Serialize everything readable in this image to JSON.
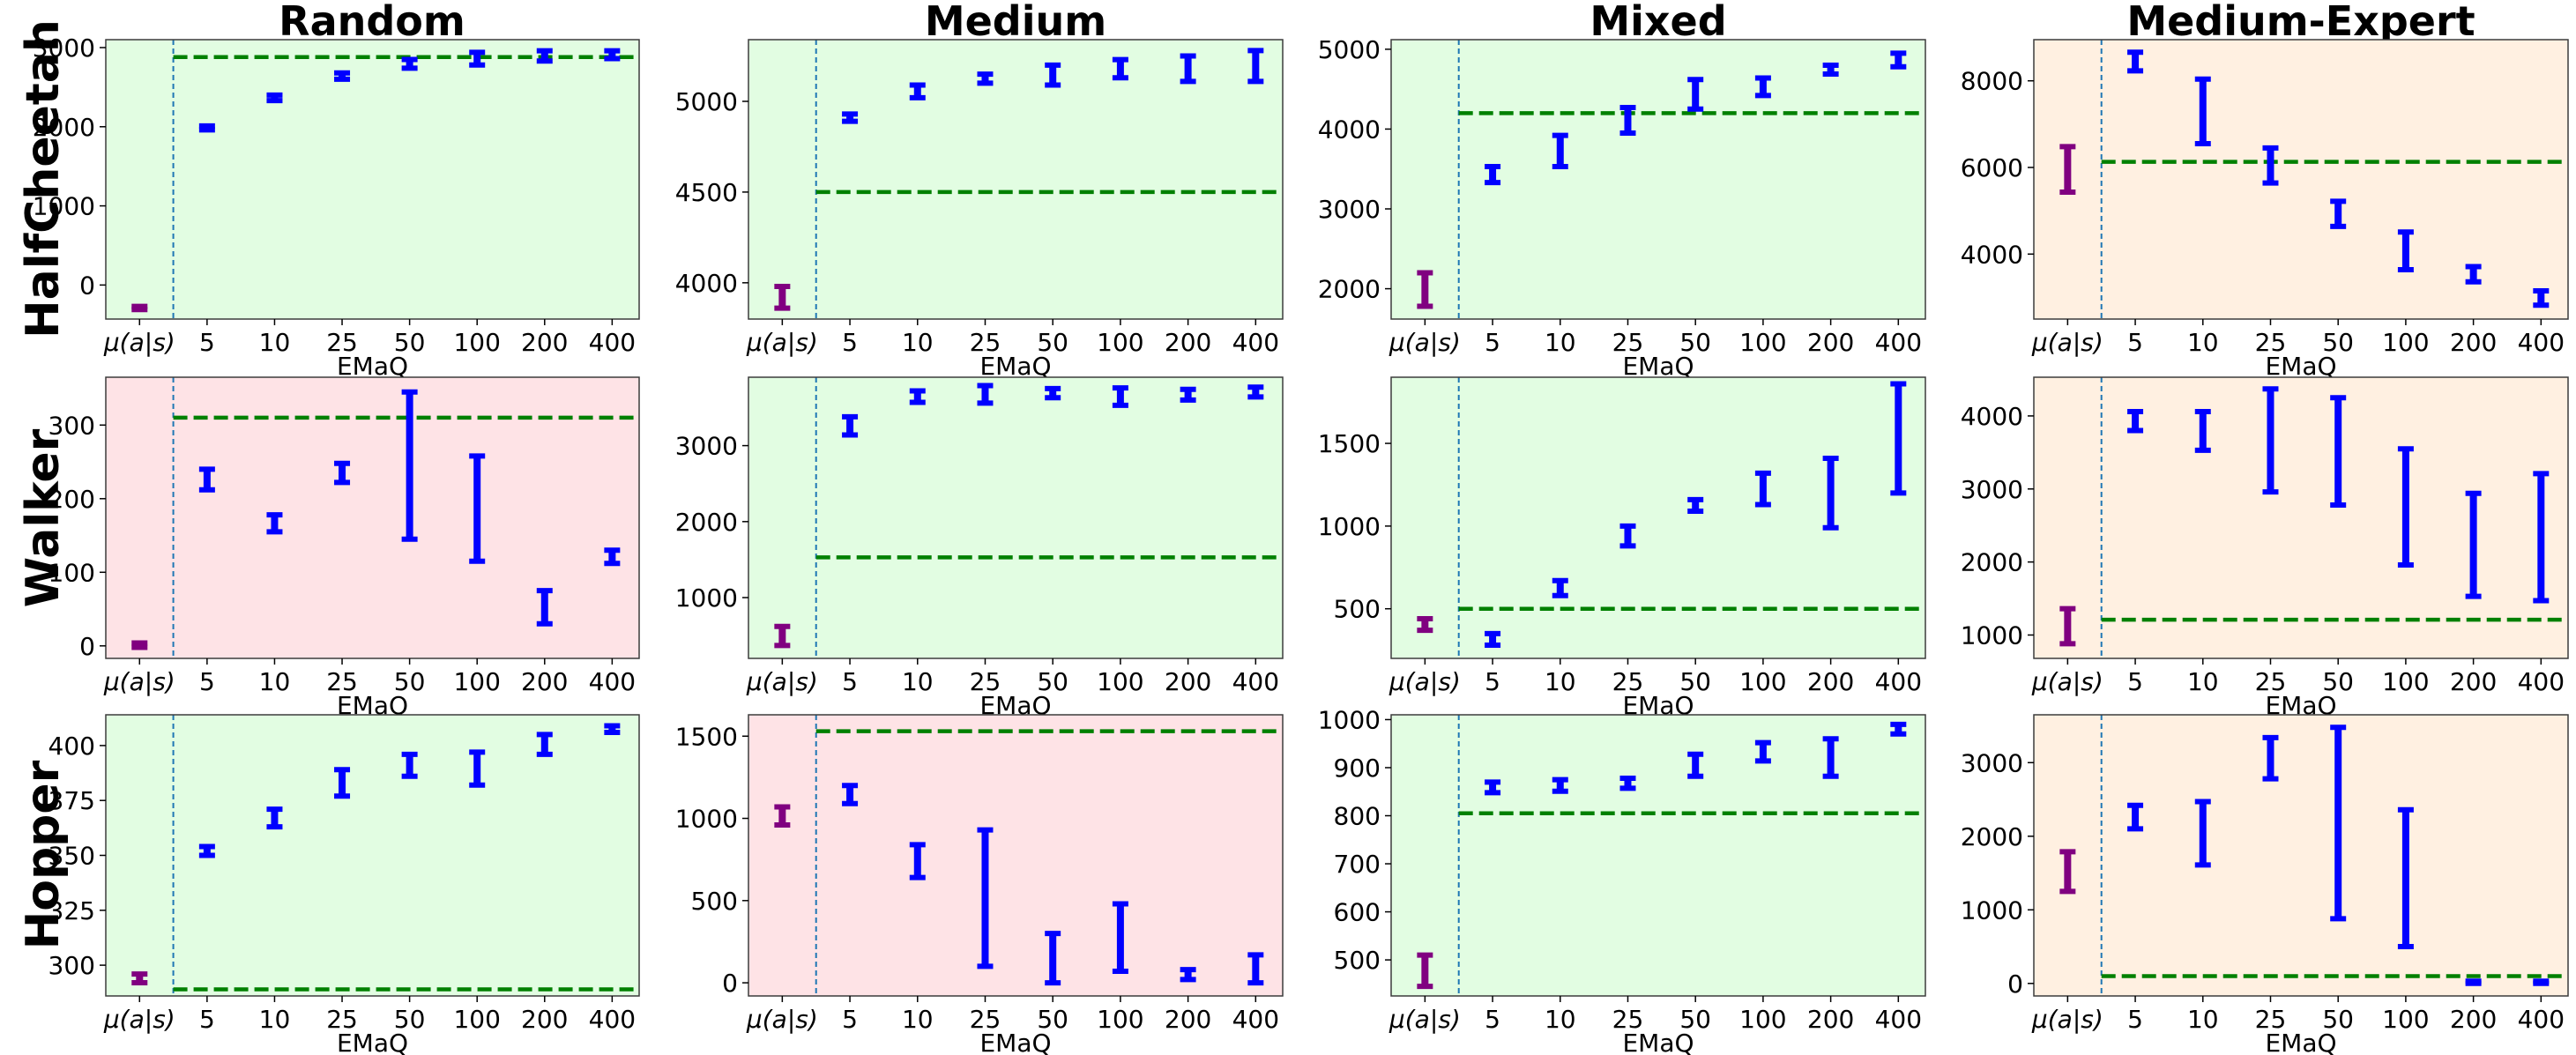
{
  "colors": {
    "good_bg": "#e2fde2",
    "bad_bg": "#fee3e6",
    "expert_bg": "#fff0e1",
    "frame": "#3c3c3c",
    "emaq_bar": "#0000ff",
    "behavior_bar": "#800080",
    "baseline": "#008000",
    "separator": "#1f77b4"
  },
  "row_labels": [
    "HalfCheetah",
    "Walker",
    "Hopper"
  ],
  "col_titles": [
    "Random",
    "Medium",
    "Mixed",
    "Medium-Expert"
  ],
  "chart_data": [
    {
      "type": "errorbar",
      "row": "HalfCheetah",
      "col": "Random",
      "bg": "good",
      "xlabel": "EMaQ",
      "categories": [
        "μ(a|s)",
        "5",
        "10",
        "25",
        "50",
        "100",
        "200",
        "400"
      ],
      "ylim": [
        -430,
        3100
      ],
      "yticks": [
        0,
        1000,
        2000,
        3000
      ],
      "baseline": 2880,
      "intervals": [
        [
          -310,
          -270
        ],
        [
          1960,
          2010
        ],
        [
          2330,
          2400
        ],
        [
          2600,
          2680
        ],
        [
          2740,
          2850
        ],
        [
          2780,
          2940
        ],
        [
          2830,
          2960
        ],
        [
          2860,
          2960
        ]
      ]
    },
    {
      "type": "errorbar",
      "row": "HalfCheetah",
      "col": "Medium",
      "bg": "good",
      "xlabel": "EMaQ",
      "categories": [
        "μ(a|s)",
        "5",
        "10",
        "25",
        "50",
        "100",
        "200",
        "400"
      ],
      "ylim": [
        3800,
        5340
      ],
      "yticks": [
        4000,
        4500,
        5000
      ],
      "baseline": 4500,
      "intervals": [
        [
          3860,
          3980
        ],
        [
          4890,
          4930
        ],
        [
          5020,
          5090
        ],
        [
          5100,
          5150
        ],
        [
          5090,
          5200
        ],
        [
          5130,
          5230
        ],
        [
          5110,
          5250
        ],
        [
          5110,
          5280
        ]
      ]
    },
    {
      "type": "errorbar",
      "row": "HalfCheetah",
      "col": "Mixed",
      "bg": "good",
      "xlabel": "EMaQ",
      "categories": [
        "μ(a|s)",
        "5",
        "10",
        "25",
        "50",
        "100",
        "200",
        "400"
      ],
      "ylim": [
        1620,
        5120
      ],
      "yticks": [
        2000,
        3000,
        4000,
        5000
      ],
      "baseline": 4200,
      "intervals": [
        [
          1780,
          2200
        ],
        [
          3330,
          3530
        ],
        [
          3530,
          3920
        ],
        [
          3950,
          4270
        ],
        [
          4250,
          4620
        ],
        [
          4420,
          4640
        ],
        [
          4690,
          4800
        ],
        [
          4780,
          4950
        ]
      ]
    },
    {
      "type": "errorbar",
      "row": "HalfCheetah",
      "col": "Medium-Expert",
      "bg": "expert",
      "xlabel": "EMaQ",
      "categories": [
        "μ(a|s)",
        "5",
        "10",
        "25",
        "50",
        "100",
        "200",
        "400"
      ],
      "ylim": [
        2500,
        8950
      ],
      "yticks": [
        4000,
        6000,
        8000
      ],
      "baseline": 6130,
      "intervals": [
        [
          5430,
          6480
        ],
        [
          8230,
          8660
        ],
        [
          6550,
          8040
        ],
        [
          5640,
          6450
        ],
        [
          4640,
          5220
        ],
        [
          3640,
          4510
        ],
        [
          3360,
          3710
        ],
        [
          2820,
          3150
        ]
      ]
    },
    {
      "type": "errorbar",
      "row": "Walker",
      "col": "Random",
      "bg": "bad",
      "xlabel": "EMaQ",
      "categories": [
        "μ(a|s)",
        "5",
        "10",
        "25",
        "50",
        "100",
        "200",
        "400"
      ],
      "ylim": [
        -17,
        365
      ],
      "yticks": [
        0,
        100,
        200,
        300
      ],
      "baseline": 310,
      "intervals": [
        [
          -2,
          4
        ],
        [
          212,
          240
        ],
        [
          155,
          178
        ],
        [
          222,
          248
        ],
        [
          145,
          345
        ],
        [
          115,
          258
        ],
        [
          30,
          75
        ],
        [
          112,
          130
        ]
      ]
    },
    {
      "type": "errorbar",
      "row": "Walker",
      "col": "Medium",
      "bg": "good",
      "xlabel": "EMaQ",
      "categories": [
        "μ(a|s)",
        "5",
        "10",
        "25",
        "50",
        "100",
        "200",
        "400"
      ],
      "ylim": [
        200,
        3900
      ],
      "yticks": [
        1000,
        2000,
        3000
      ],
      "baseline": 1530,
      "intervals": [
        [
          370,
          620
        ],
        [
          3140,
          3380
        ],
        [
          3570,
          3720
        ],
        [
          3560,
          3790
        ],
        [
          3630,
          3750
        ],
        [
          3530,
          3760
        ],
        [
          3600,
          3740
        ],
        [
          3640,
          3770
        ]
      ]
    },
    {
      "type": "errorbar",
      "row": "Walker",
      "col": "Mixed",
      "bg": "good",
      "xlabel": "EMaQ",
      "categories": [
        "μ(a|s)",
        "5",
        "10",
        "25",
        "50",
        "100",
        "200",
        "400"
      ],
      "ylim": [
        200,
        1900
      ],
      "yticks": [
        500,
        1000,
        1500
      ],
      "baseline": 500,
      "intervals": [
        [
          370,
          440
        ],
        [
          280,
          350
        ],
        [
          580,
          670
        ],
        [
          880,
          1000
        ],
        [
          1090,
          1160
        ],
        [
          1130,
          1320
        ],
        [
          990,
          1410
        ],
        [
          1200,
          1860
        ]
      ]
    },
    {
      "type": "errorbar",
      "row": "Walker",
      "col": "Medium-Expert",
      "bg": "expert",
      "xlabel": "EMaQ",
      "categories": [
        "μ(a|s)",
        "5",
        "10",
        "25",
        "50",
        "100",
        "200",
        "400"
      ],
      "ylim": [
        680,
        4530
      ],
      "yticks": [
        1000,
        2000,
        3000,
        4000
      ],
      "baseline": 1210,
      "intervals": [
        [
          880,
          1360
        ],
        [
          3800,
          4060
        ],
        [
          3530,
          4060
        ],
        [
          2960,
          4370
        ],
        [
          2780,
          4250
        ],
        [
          1960,
          3550
        ],
        [
          1530,
          2940
        ],
        [
          1470,
          3210
        ]
      ]
    },
    {
      "type": "errorbar",
      "row": "Hopper",
      "col": "Random",
      "bg": "good",
      "xlabel": "EMaQ",
      "categories": [
        "μ(a|s)",
        "5",
        "10",
        "25",
        "50",
        "100",
        "200",
        "400"
      ],
      "ylim": [
        286,
        414
      ],
      "yticks": [
        300,
        325,
        350,
        375,
        400
      ],
      "baseline": 289,
      "intervals": [
        [
          292,
          296
        ],
        [
          350,
          354
        ],
        [
          363,
          371
        ],
        [
          377,
          389
        ],
        [
          386,
          396
        ],
        [
          382,
          397
        ],
        [
          396,
          405
        ],
        [
          406,
          409
        ]
      ]
    },
    {
      "type": "errorbar",
      "row": "Hopper",
      "col": "Medium",
      "bg": "bad",
      "xlabel": "EMaQ",
      "categories": [
        "μ(a|s)",
        "5",
        "10",
        "25",
        "50",
        "100",
        "200",
        "400"
      ],
      "ylim": [
        -80,
        1630
      ],
      "yticks": [
        0,
        500,
        1000,
        1500
      ],
      "baseline": 1530,
      "intervals": [
        [
          960,
          1070
        ],
        [
          1090,
          1200
        ],
        [
          640,
          840
        ],
        [
          100,
          930
        ],
        [
          0,
          300
        ],
        [
          70,
          480
        ],
        [
          20,
          80
        ],
        [
          0,
          170
        ]
      ]
    },
    {
      "type": "errorbar",
      "row": "Hopper",
      "col": "Mixed",
      "bg": "good",
      "xlabel": "EMaQ",
      "categories": [
        "μ(a|s)",
        "5",
        "10",
        "25",
        "50",
        "100",
        "200",
        "400"
      ],
      "ylim": [
        425,
        1010
      ],
      "yticks": [
        500,
        600,
        700,
        800,
        900,
        1000
      ],
      "baseline": 805,
      "intervals": [
        [
          445,
          510
        ],
        [
          848,
          870
        ],
        [
          851,
          875
        ],
        [
          857,
          878
        ],
        [
          882,
          928
        ],
        [
          914,
          952
        ],
        [
          882,
          960
        ],
        [
          970,
          990
        ]
      ]
    },
    {
      "type": "errorbar",
      "row": "Hopper",
      "col": "Medium-Expert",
      "bg": "expert",
      "xlabel": "EMaQ",
      "categories": [
        "μ(a|s)",
        "5",
        "10",
        "25",
        "50",
        "100",
        "200",
        "400"
      ],
      "ylim": [
        -170,
        3650
      ],
      "yticks": [
        0,
        1000,
        2000,
        3000
      ],
      "baseline": 100,
      "intervals": [
        [
          1250,
          1790
        ],
        [
          2100,
          2420
        ],
        [
          1610,
          2470
        ],
        [
          2780,
          3340
        ],
        [
          880,
          3480
        ],
        [
          500,
          2360
        ],
        [
          0,
          30
        ],
        [
          0,
          30
        ]
      ]
    }
  ]
}
